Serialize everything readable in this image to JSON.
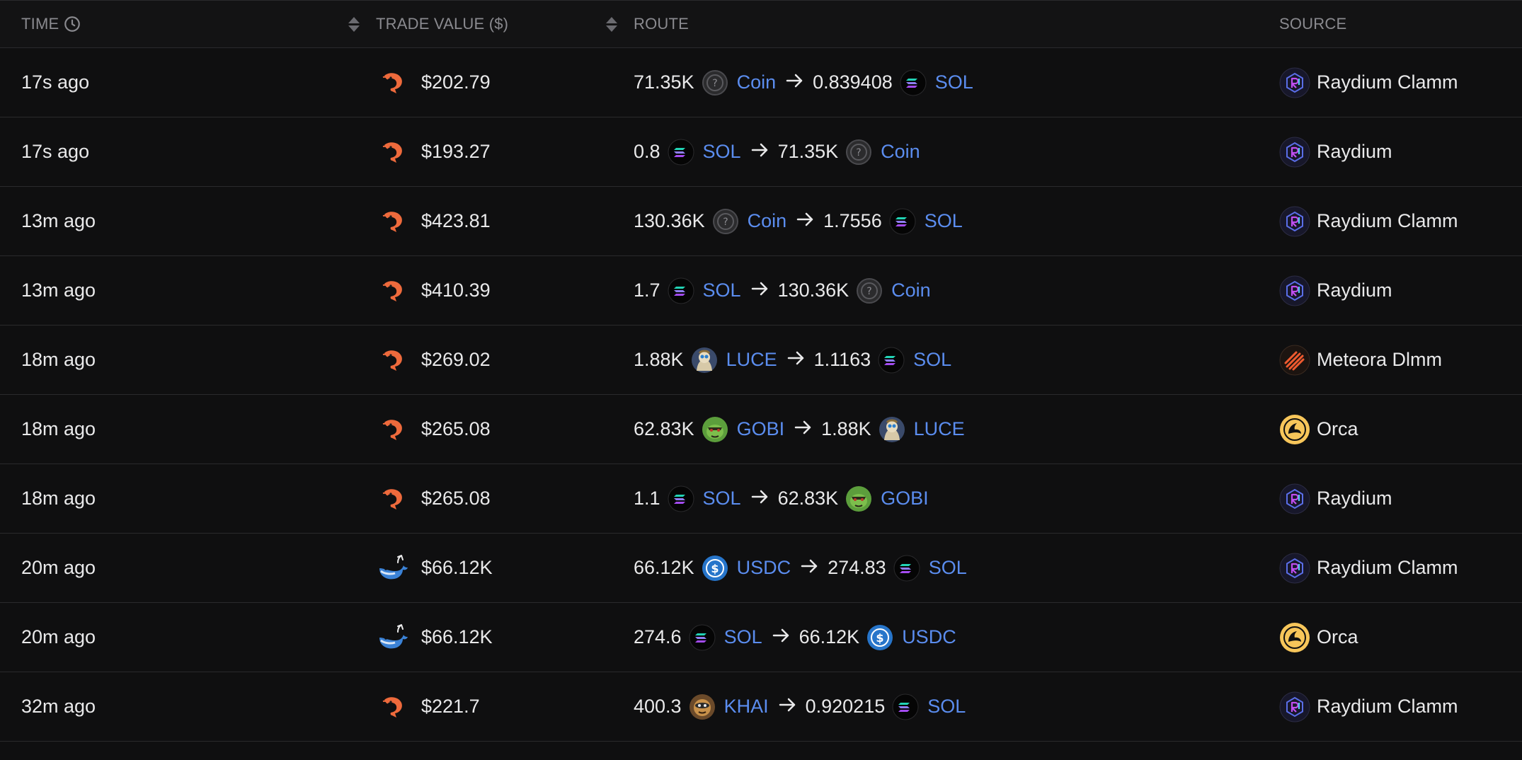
{
  "header": {
    "time": "TIME",
    "value": "TRADE VALUE ($)",
    "route": "ROUTE",
    "source": "SOURCE"
  },
  "rows": [
    {
      "time": "17s ago",
      "size_icon": "shrimp-icon",
      "value": "$202.79",
      "from_amt": "71.35K",
      "from_icon": "unknown-token-icon",
      "from_tok": "Coin",
      "to_amt": "0.839408",
      "to_icon": "sol-icon",
      "to_tok": "SOL",
      "source_icon": "raydium-icon",
      "source": "Raydium Clamm"
    },
    {
      "time": "17s ago",
      "size_icon": "shrimp-icon",
      "value": "$193.27",
      "from_amt": "0.8",
      "from_icon": "sol-icon",
      "from_tok": "SOL",
      "to_amt": "71.35K",
      "to_icon": "unknown-token-icon",
      "to_tok": "Coin",
      "source_icon": "raydium-icon",
      "source": "Raydium"
    },
    {
      "time": "13m ago",
      "size_icon": "shrimp-icon",
      "value": "$423.81",
      "from_amt": "130.36K",
      "from_icon": "unknown-token-icon",
      "from_tok": "Coin",
      "to_amt": "1.7556",
      "to_icon": "sol-icon",
      "to_tok": "SOL",
      "source_icon": "raydium-icon",
      "source": "Raydium Clamm"
    },
    {
      "time": "13m ago",
      "size_icon": "shrimp-icon",
      "value": "$410.39",
      "from_amt": "1.7",
      "from_icon": "sol-icon",
      "from_tok": "SOL",
      "to_amt": "130.36K",
      "to_icon": "unknown-token-icon",
      "to_tok": "Coin",
      "source_icon": "raydium-icon",
      "source": "Raydium"
    },
    {
      "time": "18m ago",
      "size_icon": "shrimp-icon",
      "value": "$269.02",
      "from_amt": "1.88K",
      "from_icon": "luce-icon",
      "from_tok": "LUCE",
      "to_amt": "1.1163",
      "to_icon": "sol-icon",
      "to_tok": "SOL",
      "source_icon": "meteora-icon",
      "source": "Meteora Dlmm"
    },
    {
      "time": "18m ago",
      "size_icon": "shrimp-icon",
      "value": "$265.08",
      "from_amt": "62.83K",
      "from_icon": "gobi-icon",
      "from_tok": "GOBI",
      "to_amt": "1.88K",
      "to_icon": "luce-icon",
      "to_tok": "LUCE",
      "source_icon": "orca-icon",
      "source": "Orca"
    },
    {
      "time": "18m ago",
      "size_icon": "shrimp-icon",
      "value": "$265.08",
      "from_amt": "1.1",
      "from_icon": "sol-icon",
      "from_tok": "SOL",
      "to_amt": "62.83K",
      "to_icon": "gobi-icon",
      "to_tok": "GOBI",
      "source_icon": "raydium-icon",
      "source": "Raydium"
    },
    {
      "time": "20m ago",
      "size_icon": "whale-icon",
      "value": "$66.12K",
      "from_amt": "66.12K",
      "from_icon": "usdc-icon",
      "from_tok": "USDC",
      "to_amt": "274.83",
      "to_icon": "sol-icon",
      "to_tok": "SOL",
      "source_icon": "raydium-icon",
      "source": "Raydium Clamm"
    },
    {
      "time": "20m ago",
      "size_icon": "whale-icon",
      "value": "$66.12K",
      "from_amt": "274.6",
      "from_icon": "sol-icon",
      "from_tok": "SOL",
      "to_amt": "66.12K",
      "to_icon": "usdc-icon",
      "to_tok": "USDC",
      "source_icon": "orca-icon",
      "source": "Orca"
    },
    {
      "time": "32m ago",
      "size_icon": "shrimp-icon",
      "value": "$221.7",
      "from_amt": "400.3",
      "from_icon": "khai-icon",
      "from_tok": "KHAI",
      "to_amt": "0.920215",
      "to_icon": "sol-icon",
      "to_tok": "SOL",
      "source_icon": "raydium-icon",
      "source": "Raydium Clamm"
    }
  ],
  "colors": {
    "background": "#0f0f10",
    "header_text": "#8a8a8f",
    "token_link": "#5b8def",
    "divider": "#2a2a2c"
  }
}
